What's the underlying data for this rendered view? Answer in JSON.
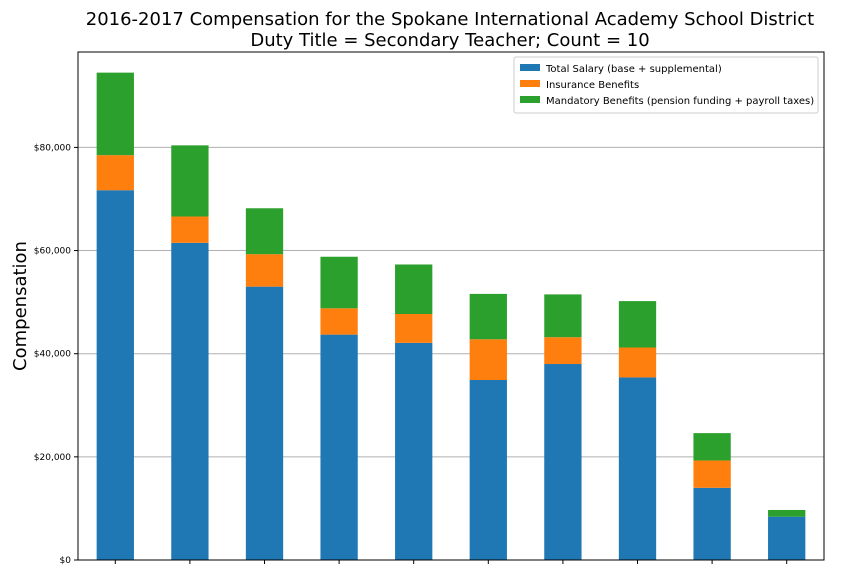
{
  "chart_data": {
    "type": "bar",
    "stacked": true,
    "title_lines": [
      "2016-2017 Compensation for the Spokane International Academy School District",
      "Duty Title = Secondary Teacher; Count = 10"
    ],
    "xlabel": "",
    "ylabel": "Compensation",
    "ylim": [
      0,
      98500
    ],
    "y_ticks": [
      0,
      20000,
      40000,
      60000,
      80000
    ],
    "y_tick_labels": [
      "$0",
      "$20,000",
      "$40,000",
      "$60,000",
      "$80,000"
    ],
    "grid": "y",
    "legend_position": "top-right",
    "categories": [
      "",
      "",
      "",
      "",
      "",
      "",
      "",
      "",
      "",
      ""
    ],
    "series": [
      {
        "name": "Total Salary (base + supplemental)",
        "color": "#1f77b4",
        "values": [
          71700,
          61500,
          53000,
          43700,
          42100,
          34900,
          38000,
          35400,
          14000,
          8400
        ]
      },
      {
        "name": "Insurance Benefits",
        "color": "#ff7f0e",
        "values": [
          6800,
          5100,
          6300,
          5100,
          5600,
          7900,
          5200,
          5800,
          5300,
          0
        ]
      },
      {
        "name": "Mandatory Benefits (pension funding + payroll taxes)",
        "color": "#2ca02c",
        "values": [
          16000,
          13800,
          8900,
          10000,
          9600,
          8800,
          8300,
          9000,
          5300,
          1300
        ]
      }
    ]
  }
}
